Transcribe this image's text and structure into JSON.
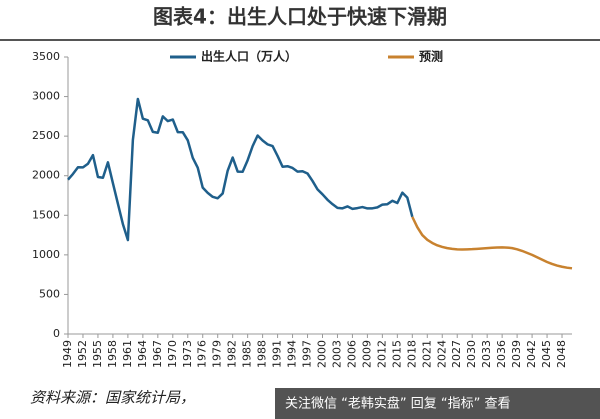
{
  "chart_data": {
    "type": "line",
    "title": "图表4：出生人口处于快速下滑期",
    "source": "资料来源：国家统计局，",
    "overlay_text": "关注微信 “老韩实盘” 回复 “指标” 查看",
    "xlim": [
      1949,
      2050
    ],
    "xticks": [
      1949,
      1952,
      1955,
      1958,
      1961,
      1964,
      1967,
      1970,
      1973,
      1976,
      1979,
      1982,
      1985,
      1988,
      1991,
      1994,
      1997,
      2000,
      2003,
      2006,
      2009,
      2012,
      2015,
      2018,
      2021,
      2024,
      2027,
      2030,
      2033,
      2036,
      2039,
      2042,
      2045,
      2048
    ],
    "ylim": [
      0,
      3500
    ],
    "yticks": [
      0,
      500,
      1000,
      1500,
      2000,
      2500,
      3000,
      3500
    ],
    "grid": false,
    "legend": "top",
    "series": [
      {
        "name": "出生人口（万人）",
        "color": "#1f5f8b",
        "x": [
          1949,
          1950,
          1951,
          1952,
          1953,
          1954,
          1955,
          1956,
          1957,
          1958,
          1959,
          1960,
          1961,
          1962,
          1963,
          1964,
          1965,
          1966,
          1967,
          1968,
          1969,
          1970,
          1971,
          1972,
          1973,
          1974,
          1975,
          1976,
          1977,
          1978,
          1979,
          1980,
          1981,
          1982,
          1983,
          1984,
          1985,
          1986,
          1987,
          1988,
          1989,
          1990,
          1991,
          1992,
          1993,
          1994,
          1995,
          1996,
          1997,
          1998,
          1999,
          2000,
          2001,
          2002,
          2003,
          2004,
          2005,
          2006,
          2007,
          2008,
          2009,
          2010,
          2011,
          2012,
          2013,
          2014,
          2015,
          2016,
          2017,
          2018
        ],
        "values": [
          1950,
          2023,
          2107,
          2105,
          2151,
          2260,
          1984,
          1974,
          2169,
          1906,
          1647,
          1389,
          1187,
          2451,
          2970,
          2721,
          2700,
          2554,
          2543,
          2750,
          2690,
          2710,
          2551,
          2550,
          2447,
          2226,
          2102,
          1849,
          1783,
          1733,
          1715,
          1776,
          2064,
          2230,
          2052,
          2050,
          2196,
          2374,
          2508,
          2445,
          2396,
          2374,
          2250,
          2113,
          2120,
          2098,
          2052,
          2057,
          2028,
          1934,
          1827,
          1765,
          1696,
          1641,
          1594,
          1588,
          1612,
          1581,
          1591,
          1604,
          1587,
          1588,
          1600,
          1635,
          1640,
          1683,
          1655,
          1786,
          1723,
          1480
        ]
      },
      {
        "name": "预测",
        "color": "#c8822f",
        "x": [
          2018,
          2019,
          2020,
          2021,
          2022,
          2023,
          2024,
          2025,
          2026,
          2027,
          2028,
          2029,
          2030,
          2031,
          2032,
          2033,
          2034,
          2035,
          2036,
          2037,
          2038,
          2039,
          2040,
          2041,
          2042,
          2043,
          2044,
          2045,
          2046,
          2047,
          2048,
          2049,
          2050
        ],
        "values": [
          1480,
          1350,
          1250,
          1190,
          1150,
          1120,
          1100,
          1085,
          1075,
          1070,
          1068,
          1070,
          1072,
          1076,
          1080,
          1085,
          1090,
          1093,
          1095,
          1092,
          1085,
          1070,
          1050,
          1025,
          1000,
          970,
          940,
          910,
          885,
          865,
          850,
          838,
          830
        ]
      }
    ]
  }
}
